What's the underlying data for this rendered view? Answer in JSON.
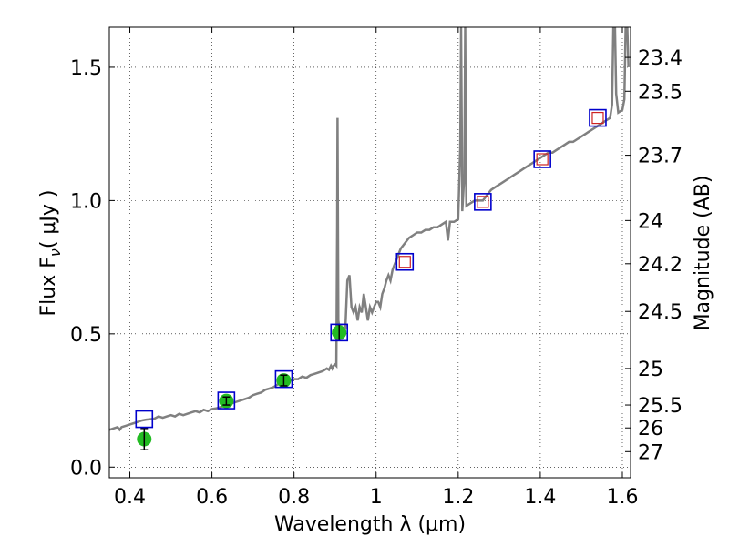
{
  "chart_data": {
    "type": "scatter",
    "xlabel": "Wavelength  λ (μm)",
    "ylabel": "Flux  F",
    "ylabel_sub": "ν",
    "ylabel_unit": "( μJy )",
    "y2label": "Magnitude (AB)",
    "xlim": [
      0.35,
      1.62
    ],
    "ylim": [
      -0.04,
      1.65
    ],
    "grid": true,
    "x_ticks": [
      {
        "v": 0.4,
        "label": "0.4"
      },
      {
        "v": 0.6,
        "label": "0.6"
      },
      {
        "v": 0.8,
        "label": "0.8"
      },
      {
        "v": 1.0,
        "label": "1"
      },
      {
        "v": 1.2,
        "label": "1.2"
      },
      {
        "v": 1.4,
        "label": "1.4"
      },
      {
        "v": 1.6,
        "label": "1.6"
      }
    ],
    "y_ticks": [
      {
        "v": 0.0,
        "label": "0.0"
      },
      {
        "v": 0.5,
        "label": "0.5"
      },
      {
        "v": 1.0,
        "label": "1.0"
      },
      {
        "v": 1.5,
        "label": "1.5"
      }
    ],
    "mag_ticks": [
      {
        "v": 1.537,
        "label": "23.4"
      },
      {
        "v": 1.41,
        "label": "23.5"
      },
      {
        "v": 1.17,
        "label": "23.7"
      },
      {
        "v": 0.925,
        "label": "24"
      },
      {
        "v": 0.763,
        "label": "24.2"
      },
      {
        "v": 0.584,
        "label": "24.5"
      },
      {
        "v": 0.37,
        "label": "25"
      },
      {
        "v": 0.233,
        "label": "25.5"
      },
      {
        "v": 0.147,
        "label": "26"
      },
      {
        "v": 0.058,
        "label": "27"
      }
    ],
    "spectrum": {
      "color": "#808080",
      "points": [
        [
          0.35,
          0.14
        ],
        [
          0.36,
          0.145
        ],
        [
          0.37,
          0.15
        ],
        [
          0.375,
          0.14
        ],
        [
          0.38,
          0.15
        ],
        [
          0.39,
          0.155
        ],
        [
          0.4,
          0.16
        ],
        [
          0.41,
          0.165
        ],
        [
          0.42,
          0.17
        ],
        [
          0.43,
          0.175
        ],
        [
          0.44,
          0.178
        ],
        [
          0.45,
          0.18
        ],
        [
          0.46,
          0.182
        ],
        [
          0.47,
          0.19
        ],
        [
          0.48,
          0.185
        ],
        [
          0.49,
          0.19
        ],
        [
          0.5,
          0.195
        ],
        [
          0.51,
          0.19
        ],
        [
          0.52,
          0.2
        ],
        [
          0.53,
          0.195
        ],
        [
          0.54,
          0.2
        ],
        [
          0.55,
          0.205
        ],
        [
          0.56,
          0.21
        ],
        [
          0.57,
          0.205
        ],
        [
          0.58,
          0.215
        ],
        [
          0.59,
          0.21
        ],
        [
          0.6,
          0.218
        ],
        [
          0.61,
          0.22
        ],
        [
          0.62,
          0.225
        ],
        [
          0.63,
          0.23
        ],
        [
          0.64,
          0.235
        ],
        [
          0.65,
          0.24
        ],
        [
          0.66,
          0.245
        ],
        [
          0.67,
          0.25
        ],
        [
          0.68,
          0.255
        ],
        [
          0.69,
          0.26
        ],
        [
          0.7,
          0.27
        ],
        [
          0.71,
          0.275
        ],
        [
          0.72,
          0.28
        ],
        [
          0.73,
          0.29
        ],
        [
          0.74,
          0.295
        ],
        [
          0.75,
          0.3
        ],
        [
          0.76,
          0.31
        ],
        [
          0.77,
          0.315
        ],
        [
          0.78,
          0.32
        ],
        [
          0.79,
          0.325
        ],
        [
          0.8,
          0.33
        ],
        [
          0.81,
          0.33
        ],
        [
          0.82,
          0.34
        ],
        [
          0.83,
          0.335
        ],
        [
          0.84,
          0.345
        ],
        [
          0.85,
          0.35
        ],
        [
          0.86,
          0.355
        ],
        [
          0.87,
          0.36
        ],
        [
          0.88,
          0.37
        ],
        [
          0.885,
          0.365
        ],
        [
          0.89,
          0.38
        ],
        [
          0.893,
          0.37
        ],
        [
          0.896,
          0.38
        ],
        [
          0.9,
          0.385
        ],
        [
          0.903,
          0.38
        ],
        [
          0.905,
          0.9
        ],
        [
          0.906,
          1.31
        ],
        [
          0.907,
          0.9
        ],
        [
          0.908,
          0.55
        ],
        [
          0.91,
          0.53
        ],
        [
          0.915,
          0.52
        ],
        [
          0.92,
          0.51
        ],
        [
          0.925,
          0.52
        ],
        [
          0.93,
          0.7
        ],
        [
          0.935,
          0.72
        ],
        [
          0.94,
          0.6
        ],
        [
          0.945,
          0.58
        ],
        [
          0.95,
          0.6
        ],
        [
          0.955,
          0.55
        ],
        [
          0.96,
          0.6
        ],
        [
          0.965,
          0.58
        ],
        [
          0.97,
          0.65
        ],
        [
          0.975,
          0.6
        ],
        [
          0.98,
          0.55
        ],
        [
          0.985,
          0.6
        ],
        [
          0.99,
          0.58
        ],
        [
          0.995,
          0.6
        ],
        [
          1.0,
          0.62
        ],
        [
          1.005,
          0.62
        ],
        [
          1.01,
          0.6
        ],
        [
          1.015,
          0.65
        ],
        [
          1.02,
          0.67
        ],
        [
          1.025,
          0.7
        ],
        [
          1.03,
          0.72
        ],
        [
          1.035,
          0.7
        ],
        [
          1.04,
          0.74
        ],
        [
          1.045,
          0.76
        ],
        [
          1.05,
          0.78
        ],
        [
          1.055,
          0.8
        ],
        [
          1.06,
          0.82
        ],
        [
          1.07,
          0.84
        ],
        [
          1.08,
          0.86
        ],
        [
          1.09,
          0.87
        ],
        [
          1.1,
          0.88
        ],
        [
          1.11,
          0.88
        ],
        [
          1.12,
          0.89
        ],
        [
          1.13,
          0.89
        ],
        [
          1.14,
          0.9
        ],
        [
          1.15,
          0.9
        ],
        [
          1.16,
          0.91
        ],
        [
          1.17,
          0.92
        ],
        [
          1.175,
          0.85
        ],
        [
          1.18,
          0.92
        ],
        [
          1.19,
          0.92
        ],
        [
          1.2,
          0.93
        ],
        [
          1.205,
          1.2
        ],
        [
          1.207,
          1.65
        ],
        [
          1.209,
          1.2
        ],
        [
          1.21,
          0.96
        ],
        [
          1.215,
          1.1
        ],
        [
          1.217,
          1.65
        ],
        [
          1.219,
          1.1
        ],
        [
          1.22,
          0.98
        ],
        [
          1.23,
          0.99
        ],
        [
          1.24,
          1.0
        ],
        [
          1.25,
          1.0
        ],
        [
          1.26,
          1.0
        ],
        [
          1.27,
          1.02
        ],
        [
          1.28,
          1.04
        ],
        [
          1.29,
          1.05
        ],
        [
          1.3,
          1.06
        ],
        [
          1.31,
          1.07
        ],
        [
          1.32,
          1.08
        ],
        [
          1.33,
          1.09
        ],
        [
          1.34,
          1.1
        ],
        [
          1.35,
          1.11
        ],
        [
          1.36,
          1.12
        ],
        [
          1.37,
          1.13
        ],
        [
          1.38,
          1.14
        ],
        [
          1.39,
          1.15
        ],
        [
          1.4,
          1.16
        ],
        [
          1.41,
          1.17
        ],
        [
          1.42,
          1.18
        ],
        [
          1.43,
          1.18
        ],
        [
          1.44,
          1.19
        ],
        [
          1.45,
          1.2
        ],
        [
          1.46,
          1.21
        ],
        [
          1.47,
          1.22
        ],
        [
          1.48,
          1.22
        ],
        [
          1.49,
          1.23
        ],
        [
          1.5,
          1.24
        ],
        [
          1.51,
          1.25
        ],
        [
          1.52,
          1.26
        ],
        [
          1.53,
          1.27
        ],
        [
          1.54,
          1.28
        ],
        [
          1.55,
          1.29
        ],
        [
          1.56,
          1.3
        ],
        [
          1.57,
          1.31
        ],
        [
          1.575,
          1.36
        ],
        [
          1.578,
          1.65
        ],
        [
          1.582,
          1.65
        ],
        [
          1.585,
          1.4
        ],
        [
          1.59,
          1.33
        ],
        [
          1.6,
          1.34
        ],
        [
          1.605,
          1.38
        ],
        [
          1.608,
          1.65
        ],
        [
          1.612,
          1.65
        ],
        [
          1.615,
          1.5
        ]
      ]
    },
    "model_points": [
      {
        "x": 0.435,
        "y": 0.18
      },
      {
        "x": 0.635,
        "y": 0.25
      },
      {
        "x": 0.775,
        "y": 0.33
      },
      {
        "x": 0.91,
        "y": 0.505
      },
      {
        "x": 1.07,
        "y": 0.77
      },
      {
        "x": 1.26,
        "y": 0.995
      },
      {
        "x": 1.405,
        "y": 1.155
      },
      {
        "x": 1.54,
        "y": 1.31
      }
    ],
    "green_points": [
      {
        "x": 0.435,
        "y": 0.105,
        "err": 0.04
      },
      {
        "x": 0.635,
        "y": 0.248,
        "err": 0.015
      },
      {
        "x": 0.775,
        "y": 0.325,
        "err": 0.02
      },
      {
        "x": 0.91,
        "y": 0.505,
        "err": 0.03
      }
    ],
    "red_points": [
      {
        "x": 1.07,
        "y": 0.77
      },
      {
        "x": 1.26,
        "y": 0.995
      },
      {
        "x": 1.405,
        "y": 1.155
      },
      {
        "x": 1.54,
        "y": 1.31
      }
    ],
    "colors": {
      "model_box": "#0000cc",
      "green": "#22bb22",
      "red": "#cc2222",
      "error_bar": "#000000"
    }
  }
}
